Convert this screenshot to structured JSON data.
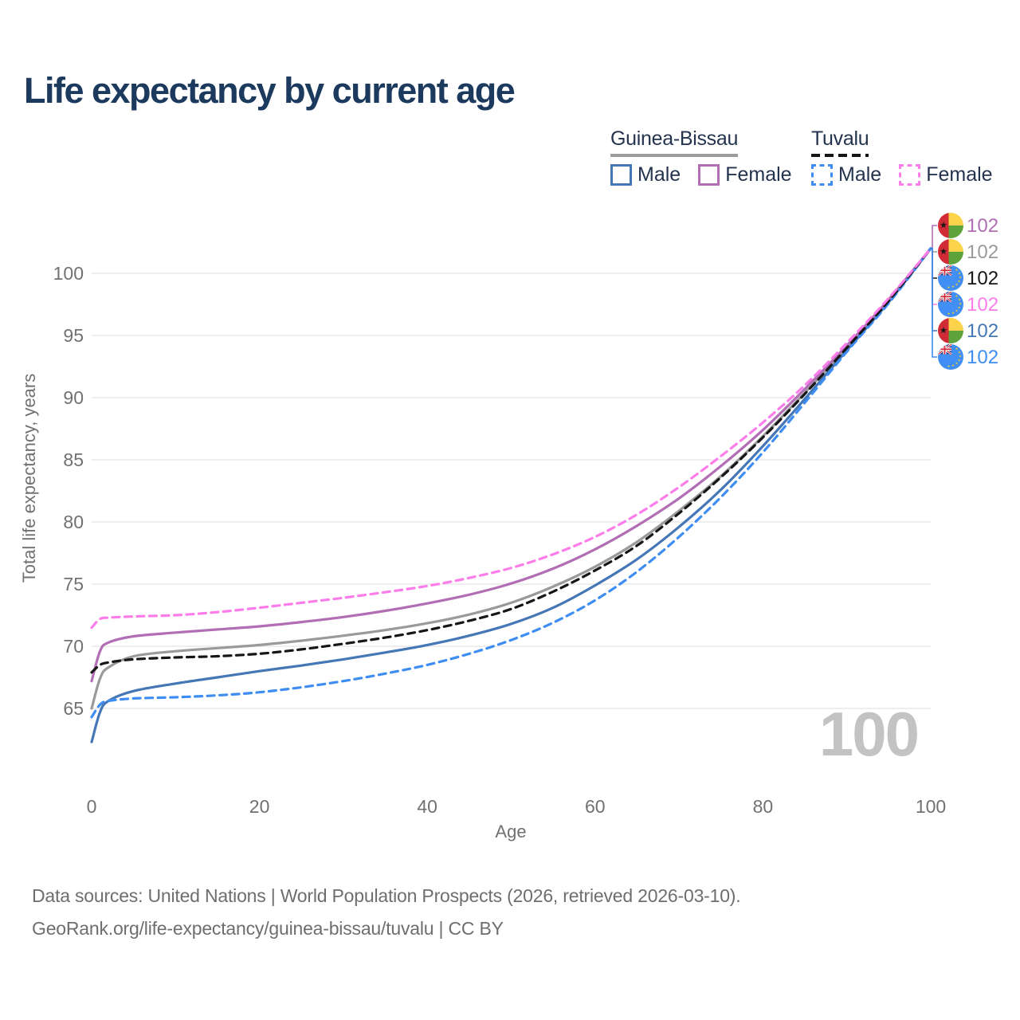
{
  "title": "Life expectancy by current age",
  "legend": {
    "groups": [
      {
        "country": "Guinea-Bissau",
        "line_style": "solid",
        "items": [
          {
            "label": "Male",
            "color": "#4576b5"
          },
          {
            "label": "Female",
            "color": "#b26eb4"
          }
        ]
      },
      {
        "country": "Tuvalu",
        "line_style": "dashed",
        "items": [
          {
            "label": "Male",
            "color": "#3e8df2"
          },
          {
            "label": "Female",
            "color": "#fc7de9"
          }
        ]
      }
    ]
  },
  "chart_data": {
    "type": "line",
    "title": "Life expectancy by current age",
    "xlabel": "Age",
    "ylabel": "Total life expectancy, years",
    "x_ticks": [
      0,
      20,
      40,
      60,
      80,
      100
    ],
    "y_ticks": [
      65,
      70,
      75,
      80,
      85,
      90,
      95,
      100
    ],
    "xlim": [
      0,
      100
    ],
    "ylim": [
      62,
      103
    ],
    "grid": "horizontal-only",
    "legend_position": "top-right",
    "x": [
      0,
      1,
      2,
      5,
      10,
      15,
      20,
      25,
      30,
      35,
      40,
      45,
      50,
      55,
      60,
      65,
      70,
      75,
      80,
      85,
      90,
      95,
      100
    ],
    "series": [
      {
        "name": "Guinea-Bissau Total",
        "country": "Guinea-Bissau",
        "sex": "Both",
        "color": "#9a9a9a",
        "dashed": false,
        "flag": "guinea-bissau-flag-icon",
        "end_label": "102",
        "label_row": 1,
        "values": [
          65.0,
          67.4,
          68.3,
          69.2,
          69.6,
          69.85,
          70.1,
          70.45,
          70.85,
          71.3,
          71.85,
          72.55,
          73.5,
          74.8,
          76.4,
          78.4,
          80.9,
          83.7,
          86.9,
          90.4,
          94.0,
          97.8,
          102
        ]
      },
      {
        "name": "Guinea-Bissau Male",
        "country": "Guinea-Bissau",
        "sex": "Male",
        "color": "#4576b5",
        "dashed": false,
        "flag": "guinea-bissau-flag-icon",
        "end_label": "102",
        "label_row": 4,
        "values": [
          62.3,
          64.7,
          65.6,
          66.4,
          67.0,
          67.5,
          68.0,
          68.45,
          68.95,
          69.5,
          70.1,
          70.85,
          71.8,
          73.1,
          74.9,
          77.0,
          79.6,
          82.6,
          86.1,
          89.9,
          93.8,
          97.7,
          102
        ]
      },
      {
        "name": "Guinea-Bissau Female",
        "country": "Guinea-Bissau",
        "sex": "Female",
        "color": "#b26eb4",
        "dashed": false,
        "flag": "guinea-bissau-flag-icon",
        "end_label": "102",
        "label_row": 0,
        "values": [
          67.2,
          69.6,
          70.3,
          70.8,
          71.1,
          71.35,
          71.6,
          71.95,
          72.35,
          72.85,
          73.45,
          74.15,
          75.05,
          76.25,
          77.8,
          79.7,
          81.9,
          84.5,
          87.4,
          90.7,
          94.2,
          97.9,
          102
        ]
      },
      {
        "name": "Tuvalu Male",
        "country": "Tuvalu",
        "sex": "Male",
        "color": "#3e8df2",
        "dashed": true,
        "flag": "tuvalu-flag-icon",
        "end_label": "102",
        "label_row": 5,
        "values": [
          64.3,
          65.3,
          65.6,
          65.8,
          65.9,
          66.05,
          66.3,
          66.7,
          67.2,
          67.8,
          68.5,
          69.4,
          70.5,
          71.9,
          73.7,
          76.0,
          78.8,
          82.0,
          85.6,
          89.6,
          93.7,
          97.6,
          102
        ]
      },
      {
        "name": "Tuvalu Total",
        "country": "Tuvalu",
        "sex": "Both",
        "color": "#161616",
        "dashed": true,
        "flag": "tuvalu-flag-icon",
        "end_label": "102",
        "label_row": 2,
        "values": [
          67.9,
          68.5,
          68.7,
          68.95,
          69.1,
          69.2,
          69.4,
          69.75,
          70.2,
          70.7,
          71.3,
          72.05,
          73.0,
          74.4,
          76.1,
          78.1,
          80.7,
          83.6,
          86.8,
          90.3,
          94.0,
          97.8,
          102
        ]
      },
      {
        "name": "Tuvalu Female",
        "country": "Tuvalu",
        "sex": "Female",
        "color": "#fc7de9",
        "dashed": true,
        "flag": "tuvalu-flag-icon",
        "end_label": "102",
        "label_row": 3,
        "values": [
          71.5,
          72.2,
          72.3,
          72.4,
          72.5,
          72.75,
          73.1,
          73.5,
          73.9,
          74.35,
          74.85,
          75.5,
          76.3,
          77.4,
          78.8,
          80.6,
          82.8,
          85.3,
          88.0,
          91.0,
          94.4,
          98.0,
          102
        ]
      }
    ],
    "annotations": {
      "watermark": "100"
    }
  },
  "colors": {
    "title": "#1c3a5e",
    "axis_text": "#717171",
    "grid": "#e9e9e9",
    "watermark": "#c3c3c3",
    "footer_text": "#6e6e6e",
    "legend_text": "#24334e"
  },
  "footer": {
    "line1": "Data sources: United Nations | World Population Prospects (2026, retrieved 2026-03-10).",
    "line2": "GeoRank.org/life-expectancy/guinea-bissau/tuvalu | CC BY"
  }
}
